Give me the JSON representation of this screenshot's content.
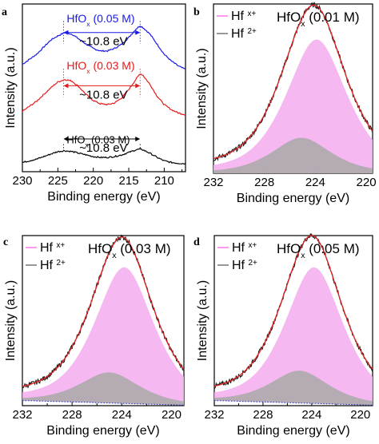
{
  "chart_data": [
    {
      "panel": "a",
      "type": "line",
      "xlabel": "Binding energy (eV)",
      "ylabel": "Intensity (a.u.)",
      "xlim": [
        230,
        207
      ],
      "xticks": [
        "230",
        "225",
        "220",
        "215",
        "210"
      ],
      "x_reversed": true,
      "series": [
        {
          "name": "HfOx (0.05 M)",
          "label_main": "HfO",
          "label_sub": "x",
          "label_rest": " (0.05 M)",
          "color": "#1a1ae6",
          "x": [
            230,
            228,
            226,
            225,
            224,
            223,
            222,
            221,
            220,
            219,
            218,
            217,
            216,
            215,
            214,
            213.4,
            213,
            212,
            211,
            210,
            209,
            208,
            207
          ],
          "y": [
            0.64,
            0.7,
            0.785,
            0.81,
            0.83,
            0.82,
            0.79,
            0.76,
            0.735,
            0.72,
            0.72,
            0.735,
            0.76,
            0.8,
            0.85,
            0.87,
            0.86,
            0.82,
            0.76,
            0.7,
            0.66,
            0.63,
            0.61
          ],
          "split": 10.8,
          "split_label": "~10.8 eV",
          "peaks": [
            224.2,
            213.4
          ]
        },
        {
          "name": "HfOx (0.03 M)",
          "label_main": "HfO",
          "label_sub": "x",
          "label_rest": " (0.03 M)",
          "color": "#e61a1a",
          "x": [
            230,
            228,
            226,
            225,
            224,
            223,
            222,
            221,
            220,
            219,
            218,
            217,
            216,
            215,
            214,
            213.4,
            213,
            212,
            211,
            210,
            209,
            208,
            207
          ],
          "y": [
            0.36,
            0.42,
            0.5,
            0.535,
            0.55,
            0.54,
            0.505,
            0.46,
            0.425,
            0.405,
            0.4,
            0.41,
            0.44,
            0.49,
            0.55,
            0.585,
            0.575,
            0.52,
            0.45,
            0.4,
            0.37,
            0.35,
            0.34
          ],
          "split": 10.8,
          "split_label": "~10.8 eV",
          "peaks": [
            224.2,
            213.4
          ]
        },
        {
          "name": "HfOx (0.03 M)",
          "label_main": "HfO",
          "label_sub": "x",
          "label_rest": " (0.03 M)",
          "color": "#000000",
          "x": [
            230,
            228,
            226,
            225,
            224,
            223,
            222,
            221,
            220,
            219,
            218,
            217,
            216,
            215,
            214,
            213.4,
            213,
            212,
            211,
            210,
            209,
            208,
            207
          ],
          "y": [
            0.055,
            0.075,
            0.105,
            0.12,
            0.125,
            0.12,
            0.11,
            0.1,
            0.09,
            0.085,
            0.085,
            0.09,
            0.1,
            0.115,
            0.13,
            0.135,
            0.13,
            0.11,
            0.085,
            0.065,
            0.055,
            0.05,
            0.048
          ],
          "split": 10.8,
          "split_label": "~10.8 eV",
          "peaks": [
            224.2,
            213.4
          ]
        }
      ]
    },
    {
      "panel": "b",
      "type": "area",
      "title": "HfO",
      "title_sub": "x",
      "title_rest": " (0.01 M)",
      "xlabel": "Binding energy (eV)",
      "ylabel": "Intensity (a.u.)",
      "xlim": [
        232,
        219.5
      ],
      "xticks": [
        "232",
        "228",
        "224",
        "220"
      ],
      "x_reversed": true,
      "legend": [
        {
          "name": "Hf x+",
          "main": "Hf",
          "sup": "x+",
          "color": "#ff99ee"
        },
        {
          "name": "Hf 2+",
          "main": "Hf",
          "sup": "2+",
          "color": "#999999"
        }
      ],
      "components": [
        {
          "name": "Hf x+",
          "center": 223.9,
          "height": 0.79,
          "width": 3.4,
          "color": "#f5b0f0"
        },
        {
          "name": "Hf 2+",
          "center": 225.1,
          "height": 0.21,
          "width": 3.3,
          "color": "#a8a8a8"
        }
      ],
      "baseline": 0.0,
      "has_dotted_background": false
    },
    {
      "panel": "c",
      "type": "area",
      "title": "HfO",
      "title_sub": "x",
      "title_rest": " (0.03 M)",
      "xlabel": "Binding energy (eV)",
      "ylabel": "Intensity (a.u.)",
      "xlim": [
        232,
        219
      ],
      "xticks": [
        "232",
        "228",
        "224",
        "220"
      ],
      "x_reversed": true,
      "legend": [
        {
          "name": "Hf x+",
          "main": "Hf",
          "sup": "x+",
          "color": "#ff99ee"
        },
        {
          "name": "Hf 2+",
          "main": "Hf",
          "sup": "2+",
          "color": "#999999"
        }
      ],
      "components": [
        {
          "name": "Hf x+",
          "center": 223.8,
          "height": 0.8,
          "width": 3.4,
          "color": "#f5b0f0"
        },
        {
          "name": "Hf 2+",
          "center": 225.0,
          "height": 0.18,
          "width": 3.4,
          "color": "#a8a8a8"
        }
      ],
      "baseline": 0.03,
      "has_dotted_background": true
    },
    {
      "panel": "d",
      "type": "area",
      "title": "HfO",
      "title_sub": "x",
      "title_rest": " (0.05 M)",
      "xlabel": "Binding energy (eV)",
      "ylabel": "Intensity (a.u.)",
      "xlim": [
        232,
        219
      ],
      "xticks": [
        "232",
        "228",
        "224",
        "220"
      ],
      "x_reversed": true,
      "legend": [
        {
          "name": "Hf x+",
          "main": "Hf",
          "sup": "x+",
          "color": "#ff99ee"
        },
        {
          "name": "Hf 2+",
          "main": "Hf",
          "sup": "2+",
          "color": "#999999"
        }
      ],
      "components": [
        {
          "name": "Hf x+",
          "center": 223.8,
          "height": 0.8,
          "width": 3.4,
          "color": "#f5b0f0"
        },
        {
          "name": "Hf 2+",
          "center": 225.0,
          "height": 0.19,
          "width": 3.4,
          "color": "#a8a8a8"
        }
      ],
      "baseline": 0.03,
      "has_dotted_background": true
    }
  ]
}
